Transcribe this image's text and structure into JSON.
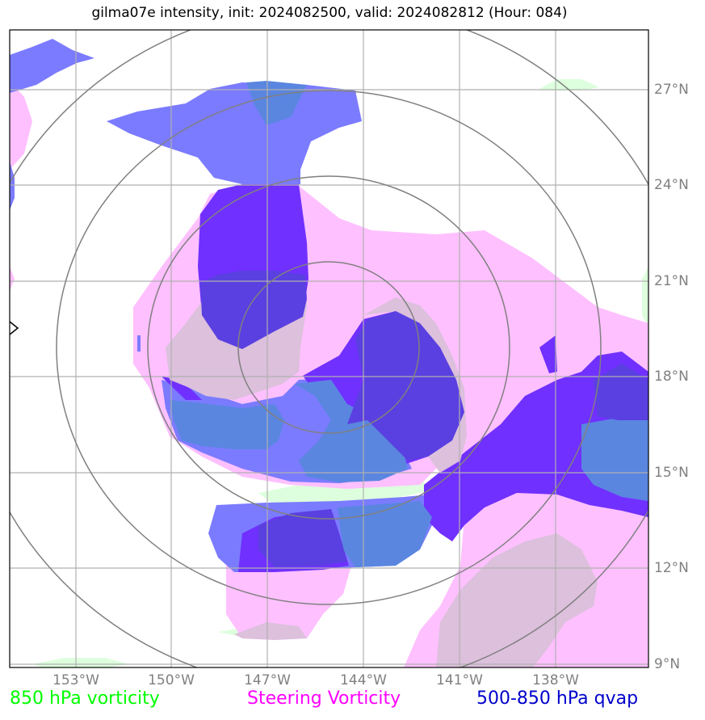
{
  "title": "gilma07e intensity, init: 2024082500, valid: 2024082812 (Hour: 084)",
  "lon_ticks": [
    "153°W",
    "150°W",
    "147°W",
    "144°W",
    "141°W",
    "138°W"
  ],
  "lat_ticks": [
    "27°N",
    "24°N",
    "21°N",
    "18°N",
    "15°N",
    "12°N",
    "9°N"
  ],
  "legend": [
    {
      "label": "850 hPa vorticity",
      "color": "#00ff00"
    },
    {
      "label": "Steering Vorticity",
      "color": "#ff00ff"
    },
    {
      "label": "500-850 hPa qvap",
      "color": "#0000cc"
    }
  ],
  "colors": {
    "vorticity_850": "#ddffdd",
    "steering_vorticity": "#ffc0ff",
    "qvap_light": "#7b7bff",
    "qvap_dark": "#7030ff",
    "overlap_gray": "#dcc0dc",
    "overlap_blue": "#5a86e0",
    "overlap_indigo": "#5a40e0",
    "range_rings": "#808080",
    "grid": "#b0b0b0"
  }
}
